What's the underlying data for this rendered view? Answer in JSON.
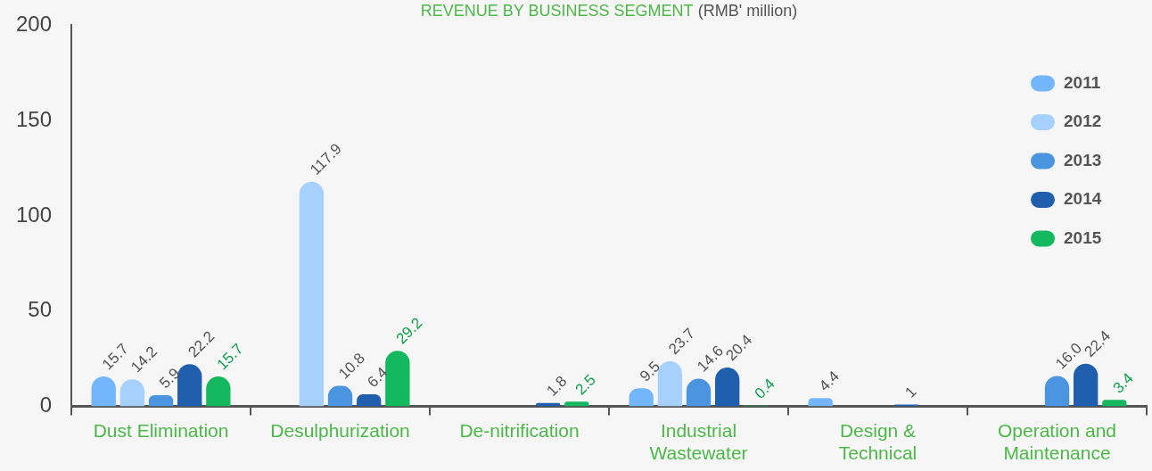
{
  "chart_data": {
    "type": "bar",
    "title": "REVENUE BY BUSINESS SEGMENT",
    "subtitle": "(RMB' million)",
    "categories": [
      "Dust Elimination",
      "Desulphurization",
      "De-nitrification",
      "Industrial Wastewater",
      "Design & Technical",
      "Operation and Maintenance"
    ],
    "series": [
      {
        "name": "2011",
        "color": "#74b6fc",
        "values": [
          15.7,
          null,
          null,
          9.5,
          4.4,
          null
        ],
        "value_labels": [
          "15.7",
          null,
          null,
          "9.5",
          "4.4",
          null
        ]
      },
      {
        "name": "2012",
        "color": "#a6d1fd",
        "values": [
          14.2,
          117.9,
          null,
          23.7,
          null,
          null
        ],
        "value_labels": [
          "14.2",
          "117.9",
          null,
          "23.7",
          null,
          null
        ]
      },
      {
        "name": "2013",
        "color": "#4a94e0",
        "values": [
          5.9,
          10.8,
          null,
          14.6,
          null,
          16.0
        ],
        "value_labels": [
          "5.9",
          "10.8",
          null,
          "14.6",
          null,
          "16.0"
        ]
      },
      {
        "name": "2014",
        "color": "#1f5fae",
        "values": [
          22.2,
          6.4,
          1.8,
          20.4,
          1,
          22.4
        ],
        "value_labels": [
          "22.2",
          "6.4",
          "1.8",
          "20.4",
          "1",
          "22.4"
        ]
      },
      {
        "name": "2015",
        "color": "#14b85e",
        "values": [
          15.7,
          29.2,
          2.5,
          0.4,
          null,
          3.4
        ],
        "value_labels": [
          "15.7",
          "29.2",
          "2.5",
          "0.4",
          null,
          "3.4"
        ]
      }
    ],
    "ylim": [
      0,
      200
    ],
    "yticks": [
      0,
      50,
      100,
      150,
      200
    ],
    "grid": false,
    "legend": "top right"
  }
}
